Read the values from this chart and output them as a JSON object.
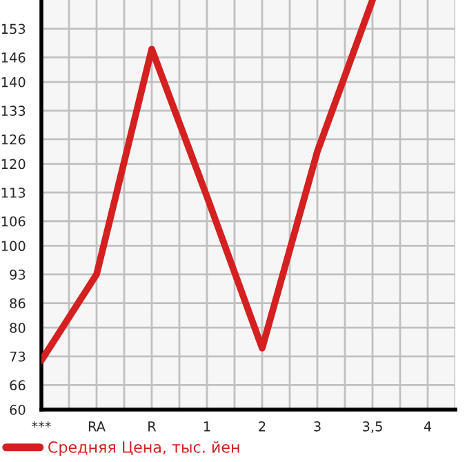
{
  "chart_data": {
    "type": "line",
    "categories": [
      "***",
      "RA",
      "R",
      "1",
      "2",
      "3",
      "3,5",
      "4"
    ],
    "series": [
      {
        "name": "Средняя Цена, тыс. йен",
        "color": "#d42020",
        "values": [
          72,
          93,
          148,
          112,
          75,
          123,
          160,
          null
        ]
      }
    ],
    "ylim": [
      60,
      160
    ],
    "yticks": [
      60,
      66,
      73,
      80,
      86,
      93,
      100,
      106,
      113,
      120,
      126,
      133,
      140,
      146,
      153
    ],
    "grid": true,
    "legend": "bottom",
    "marker": "none",
    "line_style": "solid"
  }
}
